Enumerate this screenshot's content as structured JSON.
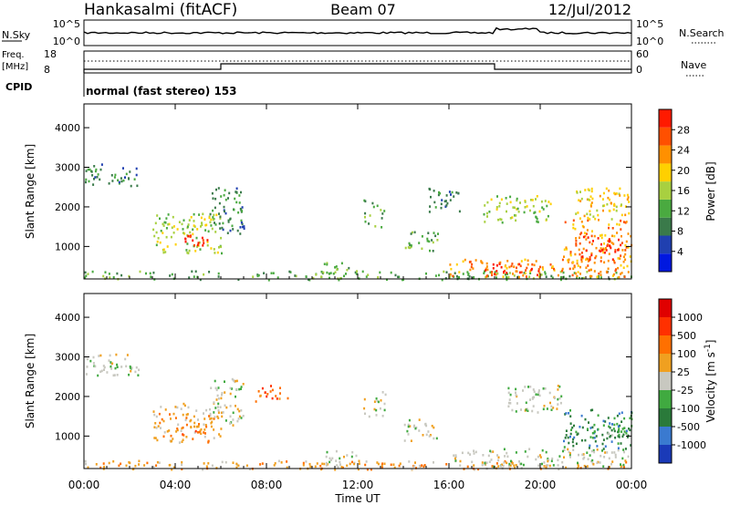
{
  "header": {
    "station": "Hankasalmi (fitACF)",
    "beam": "Beam 07",
    "date": "12/Jul/2012"
  },
  "top_panels": {
    "nsky_label": "N.Sky",
    "nsky_ticks": [
      "10^5",
      "10^0"
    ],
    "nsearch_label": "N.Search",
    "nsearch_ticks": [
      "10^5",
      "10^0"
    ],
    "freq_label_1": "Freq.",
    "freq_label_2": "[MHz]",
    "freq_ticks": [
      "18",
      "8"
    ],
    "nave_label": "Nave",
    "nave_ticks": [
      "60",
      "0"
    ],
    "cpid_label": "CPID",
    "cpid_value": "normal (fast stereo) 153"
  },
  "colorbars": {
    "power": {
      "label": "Power [dB]",
      "ticks": [
        "28",
        "24",
        "20",
        "16",
        "12",
        "8",
        "4"
      ],
      "colors": [
        "#0018e0",
        "#2040b0",
        "#3a7a4a",
        "#4aaa40",
        "#a8d040",
        "#ffd000",
        "#ff9000",
        "#ff5000",
        "#ff1a00"
      ]
    },
    "velocity": {
      "label": "Velocity [m s",
      "label_sup": "-1",
      "label_end": "]",
      "ticks": [
        "1000",
        "500",
        "100",
        "25",
        "-25",
        "-100",
        "-500",
        "-1000"
      ],
      "colors": [
        "#1a3ab8",
        "#3a7ad0",
        "#2a7a3a",
        "#40aa40",
        "#c8c8c0",
        "#f0a020",
        "#ff7000",
        "#ff3000",
        "#e00000"
      ]
    }
  },
  "chart_data": [
    {
      "type": "heatmap",
      "name": "power",
      "ylabel": "Slant Range [km]",
      "xlabel": "Time UT",
      "x_ticks": [
        "00:00",
        "04:00",
        "08:00",
        "12:00",
        "16:00",
        "20:00",
        "00:00"
      ],
      "y_ticks": [
        1000,
        2000,
        3000,
        4000
      ],
      "xlim_hours": [
        0,
        24
      ],
      "ylim_km": [
        180,
        4600
      ],
      "regions": [
        {
          "t": [
            0.0,
            2.4
          ],
          "r": [
            2550,
            3100
          ],
          "level": 2
        },
        {
          "t": [
            0.0,
            24.0
          ],
          "r": [
            180,
            400
          ],
          "level": 3
        },
        {
          "t": [
            3.0,
            6.0
          ],
          "r": [
            850,
            1850
          ],
          "level": 4
        },
        {
          "t": [
            4.2,
            5.4
          ],
          "r": [
            1000,
            1300
          ],
          "level": 8
        },
        {
          "t": [
            5.5,
            7.0
          ],
          "r": [
            1300,
            2500
          ],
          "level": 2
        },
        {
          "t": [
            10.5,
            12.0
          ],
          "r": [
            300,
            650
          ],
          "level": 3
        },
        {
          "t": [
            12.2,
            13.2
          ],
          "r": [
            1500,
            2200
          ],
          "level": 3
        },
        {
          "t": [
            14.0,
            15.5
          ],
          "r": [
            900,
            1450
          ],
          "level": 3
        },
        {
          "t": [
            15.0,
            16.5
          ],
          "r": [
            1900,
            2500
          ],
          "level": 2
        },
        {
          "t": [
            16.0,
            24.0
          ],
          "r": [
            250,
            700
          ],
          "level": 6
        },
        {
          "t": [
            17.5,
            20.0
          ],
          "r": [
            300,
            600
          ],
          "level": 8
        },
        {
          "t": [
            17.5,
            20.5
          ],
          "r": [
            1600,
            2300
          ],
          "level": 4
        },
        {
          "t": [
            21.0,
            24.0
          ],
          "r": [
            600,
            1700
          ],
          "level": 6
        },
        {
          "t": [
            21.5,
            23.5
          ],
          "r": [
            700,
            1300
          ],
          "level": 8
        },
        {
          "t": [
            21.5,
            24.0
          ],
          "r": [
            1700,
            2500
          ],
          "level": 5
        }
      ]
    },
    {
      "type": "heatmap",
      "name": "velocity",
      "ylabel": "Slant Range [km]",
      "xlabel": "Time UT",
      "x_ticks": [
        "00:00",
        "04:00",
        "08:00",
        "12:00",
        "16:00",
        "20:00",
        "00:00"
      ],
      "y_ticks": [
        1000,
        2000,
        3000,
        4000
      ],
      "xlim_hours": [
        0,
        24
      ],
      "ylim_km": [
        180,
        4600
      ],
      "regions": [
        {
          "t": [
            0.0,
            2.4
          ],
          "r": [
            2550,
            3100
          ],
          "level": 4
        },
        {
          "t": [
            0.0,
            24.0
          ],
          "r": [
            180,
            400
          ],
          "level": 5
        },
        {
          "t": [
            3.0,
            6.0
          ],
          "r": [
            850,
            1850
          ],
          "level": 5
        },
        {
          "t": [
            4.2,
            5.4
          ],
          "r": [
            1000,
            1300
          ],
          "level": 6
        },
        {
          "t": [
            5.5,
            7.0
          ],
          "r": [
            1300,
            2500
          ],
          "level": 4
        },
        {
          "t": [
            7.5,
            9.0
          ],
          "r": [
            1900,
            2300
          ],
          "level": 6
        },
        {
          "t": [
            10.5,
            12.0
          ],
          "r": [
            300,
            650
          ],
          "level": 4
        },
        {
          "t": [
            12.2,
            13.2
          ],
          "r": [
            1500,
            2200
          ],
          "level": 4
        },
        {
          "t": [
            14.0,
            15.5
          ],
          "r": [
            900,
            1450
          ],
          "level": 4
        },
        {
          "t": [
            16.0,
            24.0
          ],
          "r": [
            250,
            700
          ],
          "level": 4
        },
        {
          "t": [
            18.5,
            21.0
          ],
          "r": [
            1600,
            2300
          ],
          "level": 4
        },
        {
          "t": [
            21.0,
            24.0
          ],
          "r": [
            700,
            1700
          ],
          "level": 2
        },
        {
          "t": [
            22.0,
            24.0
          ],
          "r": [
            1000,
            1300
          ],
          "level": 3
        }
      ]
    }
  ]
}
